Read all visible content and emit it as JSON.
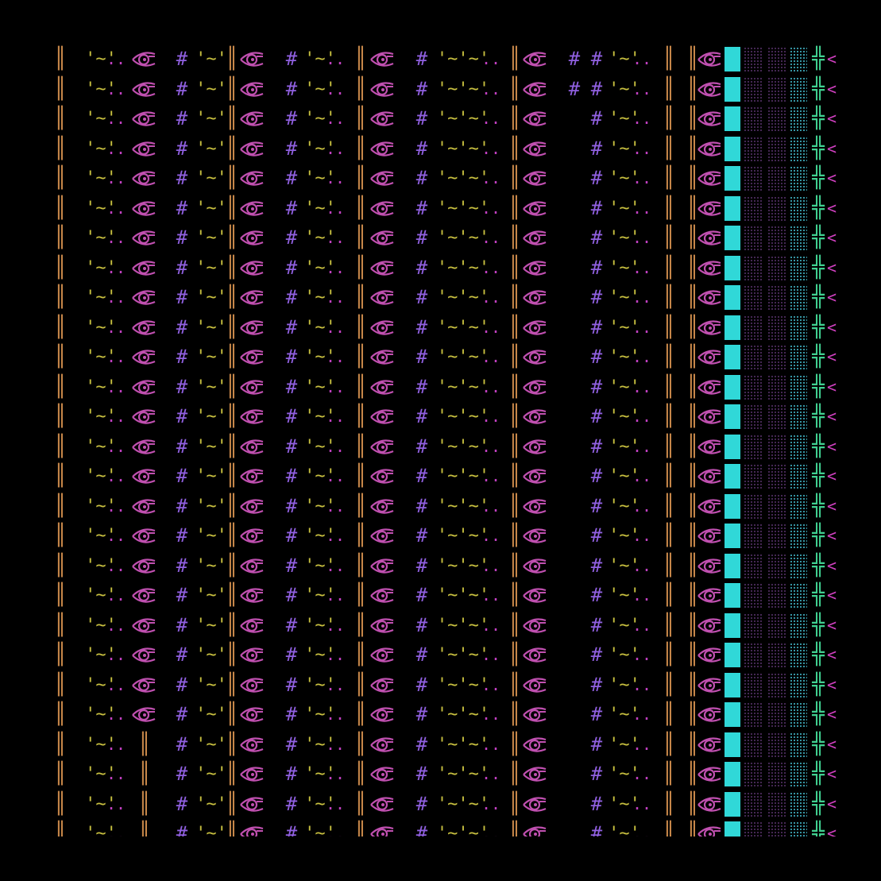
{
  "screen": "dungeon-map",
  "palette": {
    "background": "#000000",
    "wall": "#c8884a",
    "vegetation": "#c8c040",
    "dirt": "#c040c0",
    "eye": "#c050b0",
    "hash": "#9060e0",
    "water": "#30d8d8",
    "water_dim_1": "#2a1a3a",
    "water_dim_2": "#4a2a5a",
    "water_dim_3": "#3aa0b0",
    "door": "#40d090",
    "arrow": "#d040c0"
  },
  "glyphs": {
    "wall": "║",
    "grass": "'~'",
    "dots": "..",
    "eye": "👁",
    "hash": "#",
    "door": "╬",
    "arrow": "<"
  },
  "rows": 27
}
